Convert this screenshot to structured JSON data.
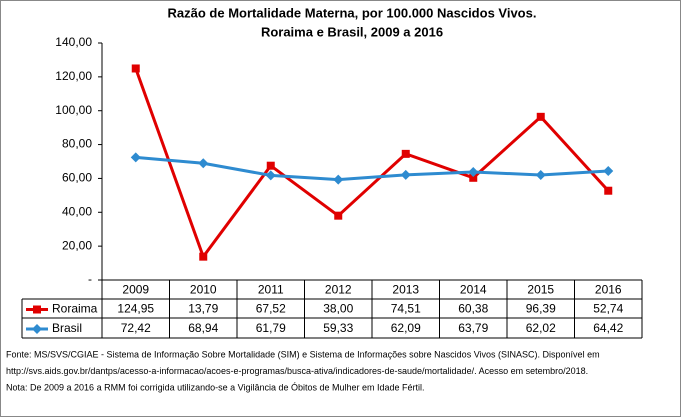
{
  "chart_data": {
    "type": "line",
    "title": "Razão de Mortalidade Materna, por 100.000 Nascidos Vivos.",
    "subtitle": "Roraima e Brasil, 2009 a 2016",
    "categories": [
      "2009",
      "2010",
      "2011",
      "2012",
      "2013",
      "2014",
      "2015",
      "2016"
    ],
    "series": [
      {
        "name": "Roraima",
        "color": "#e00000",
        "marker": "square",
        "values": [
          124.95,
          13.79,
          67.52,
          38.0,
          74.51,
          60.38,
          96.39,
          52.74
        ],
        "value_labels": [
          "124,95",
          "13,79",
          "67,52",
          "38,00",
          "74,51",
          "60,38",
          "96,39",
          "52,74"
        ]
      },
      {
        "name": "Brasil",
        "color": "#2e8bd0",
        "marker": "diamond",
        "values": [
          72.42,
          68.94,
          61.79,
          59.33,
          62.09,
          63.79,
          62.02,
          64.42
        ],
        "value_labels": [
          "72,42",
          "68,94",
          "61,79",
          "59,33",
          "62,09",
          "63,79",
          "62,02",
          "64,42"
        ]
      }
    ],
    "ylim": [
      0,
      140
    ],
    "yticks": [
      {
        "value": 0,
        "label": "-"
      },
      {
        "value": 20,
        "label": "20,00"
      },
      {
        "value": 40,
        "label": "40,00"
      },
      {
        "value": 60,
        "label": "60,00"
      },
      {
        "value": 80,
        "label": "80,00"
      },
      {
        "value": 100,
        "label": "100,00"
      },
      {
        "value": 120,
        "label": "120,00"
      },
      {
        "value": 140,
        "label": "140,00"
      }
    ],
    "grid": false,
    "notes": [
      "Fonte: MS/SVS/CGIAE - Sistema de Informação Sobre Mortalidade (SIM) e Sistema de Informações sobre Nascidos Vivos (SINASC). Disponível em",
      "http://svs.aids.gov.br/dantps/acesso-a-informacao/acoes-e-programas/busca-ativa/indicadores-de-saude/mortalidade/. Acesso em setembro/2018.",
      "Nota: De 2009 a 2016 a RMM foi corrigida utilizando-se a Vigilância de Óbitos de Mulher em Idade Fértil."
    ]
  }
}
